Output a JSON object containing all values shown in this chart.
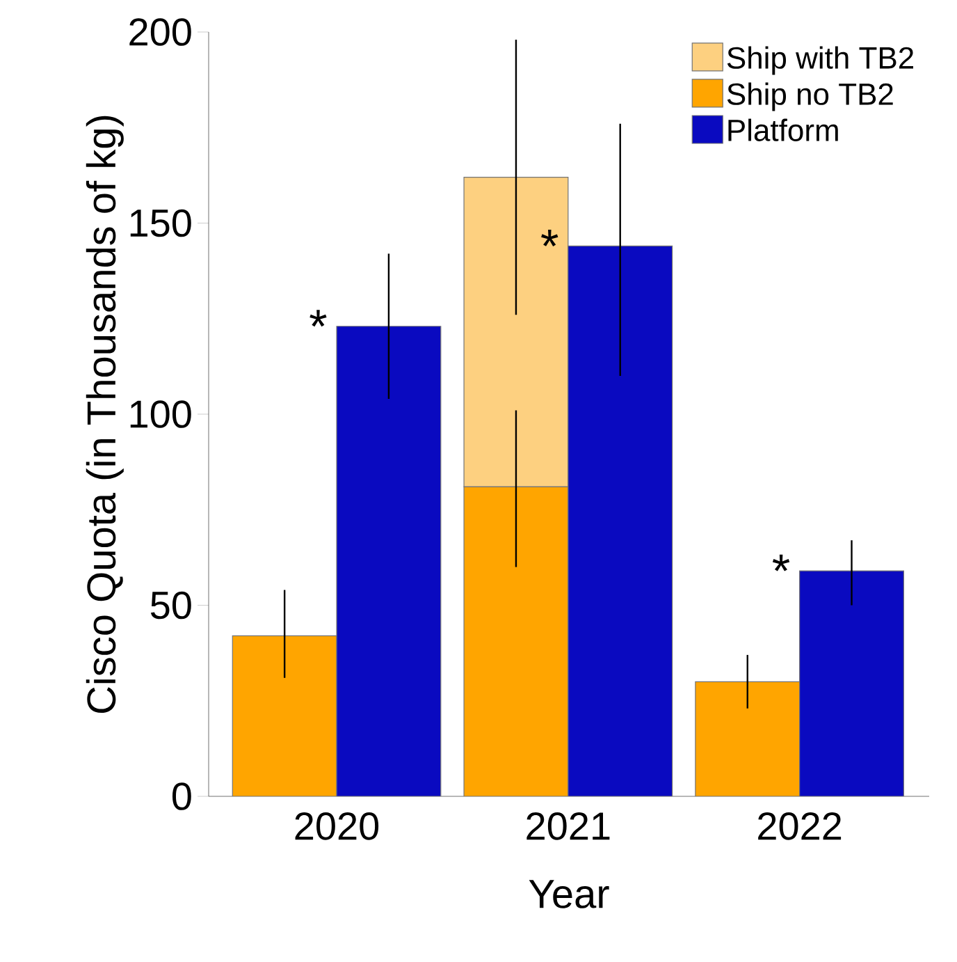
{
  "chart_data": {
    "type": "bar",
    "xlabel": "Year",
    "ylabel": "Cisco Quota (in Thousands of kg)",
    "categories": [
      "2020",
      "2021",
      "2022"
    ],
    "series": [
      {
        "name": "Ship with TB2",
        "color": "#fdd080",
        "values": [
          null,
          81,
          null
        ],
        "base": [
          null,
          81,
          null
        ],
        "errors": [
          null,
          [
            126,
            198
          ],
          null
        ]
      },
      {
        "name": "Ship no TB2",
        "color": "#ffa500",
        "values": [
          42,
          81,
          30
        ],
        "errors": [
          [
            31,
            54
          ],
          [
            60,
            101
          ],
          [
            23,
            37
          ]
        ]
      },
      {
        "name": "Platform",
        "color": "#0a0ac0",
        "values": [
          123,
          144,
          59
        ],
        "errors": [
          [
            104,
            142
          ],
          [
            110,
            176
          ],
          [
            50,
            67
          ]
        ]
      }
    ],
    "ylim": [
      0,
      200
    ],
    "yticks": [
      0,
      50,
      100,
      150,
      200
    ],
    "grid": false,
    "legend": "top right",
    "annotations": [
      "*",
      "*",
      "*"
    ]
  }
}
